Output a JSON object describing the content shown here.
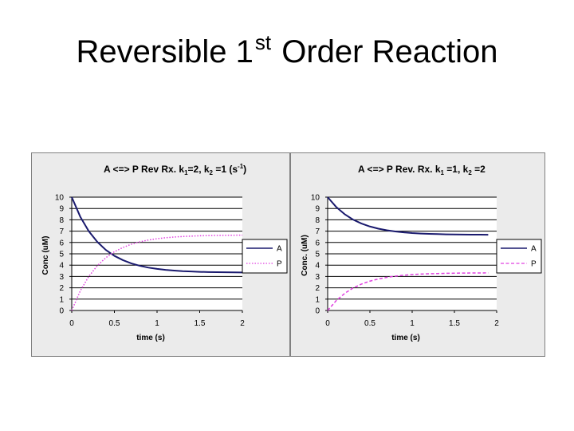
{
  "slide": {
    "title_before": "Reversible 1",
    "title_sup": "st",
    "title_after": " Order Reaction"
  },
  "chart_data": [
    {
      "type": "line",
      "title_prefix": "A <=> P   Rev Rx.  k",
      "title_sub1": "1",
      "title_mid": "=2, k",
      "title_sub2": "2",
      "title_suffix": " =1 (s",
      "title_sup": "-1",
      "title_end": ")",
      "xlabel": "time (s)",
      "ylabel": "Conc (uM)",
      "xlim": [
        0,
        2
      ],
      "ylim": [
        0,
        10
      ],
      "xticks": [
        "0",
        "0.5",
        "1",
        "1.5",
        "2"
      ],
      "yticks": [
        "0",
        "1",
        "2",
        "3",
        "4",
        "5",
        "6",
        "7",
        "8",
        "9",
        "10"
      ],
      "grid": true,
      "legend_position": "right",
      "x": [
        0,
        0.1,
        0.2,
        0.3,
        0.4,
        0.5,
        0.6,
        0.7,
        0.8,
        0.9,
        1.0,
        1.1,
        1.2,
        1.3,
        1.4,
        1.5,
        1.6,
        1.7,
        1.8,
        1.9,
        2.0
      ],
      "series": [
        {
          "name": "A",
          "color": "#1a1a6e",
          "dash": "solid",
          "values": [
            10.0,
            8.27,
            6.99,
            6.05,
            5.34,
            4.82,
            4.44,
            4.15,
            3.94,
            3.78,
            3.67,
            3.58,
            3.52,
            3.47,
            3.44,
            3.41,
            3.39,
            3.38,
            3.37,
            3.36,
            3.35
          ]
        },
        {
          "name": "P",
          "color": "#e040e0",
          "dash": "dotted",
          "values": [
            0.0,
            1.73,
            3.01,
            3.95,
            4.66,
            5.18,
            5.56,
            5.85,
            6.06,
            6.22,
            6.33,
            6.42,
            6.48,
            6.53,
            6.56,
            6.59,
            6.61,
            6.62,
            6.63,
            6.64,
            6.65
          ]
        }
      ]
    },
    {
      "type": "line",
      "title_prefix": "A <=> P Rev. Rx.  k",
      "title_sub1": "1",
      "title_mid": " =1, k",
      "title_sub2": "2",
      "title_suffix": " =2",
      "title_sup": "",
      "title_end": "",
      "xlabel": "time (s)",
      "ylabel": "Conc. (uM)",
      "xlim": [
        0,
        2
      ],
      "ylim": [
        0,
        10
      ],
      "xticks": [
        "0",
        "0.5",
        "1",
        "1.5",
        "2"
      ],
      "yticks": [
        "0",
        "1",
        "2",
        "3",
        "4",
        "5",
        "6",
        "7",
        "8",
        "9",
        "10"
      ],
      "grid": true,
      "legend_position": "right",
      "x": [
        0,
        0.1,
        0.2,
        0.3,
        0.4,
        0.5,
        0.6,
        0.7,
        0.8,
        0.9,
        1.0,
        1.1,
        1.2,
        1.3,
        1.4,
        1.5,
        1.6,
        1.7,
        1.8,
        1.9
      ],
      "series": [
        {
          "name": "A",
          "color": "#1a1a6e",
          "dash": "solid",
          "values": [
            10.0,
            9.14,
            8.5,
            8.02,
            7.67,
            7.41,
            7.22,
            7.08,
            6.97,
            6.89,
            6.83,
            6.79,
            6.76,
            6.74,
            6.72,
            6.71,
            6.7,
            6.69,
            6.69,
            6.68
          ]
        },
        {
          "name": "P",
          "color": "#e040e0",
          "dash": "dashed",
          "values": [
            0.0,
            0.86,
            1.5,
            1.98,
            2.33,
            2.59,
            2.78,
            2.92,
            3.03,
            3.11,
            3.17,
            3.21,
            3.24,
            3.26,
            3.28,
            3.29,
            3.3,
            3.31,
            3.31,
            3.32
          ]
        }
      ]
    }
  ]
}
